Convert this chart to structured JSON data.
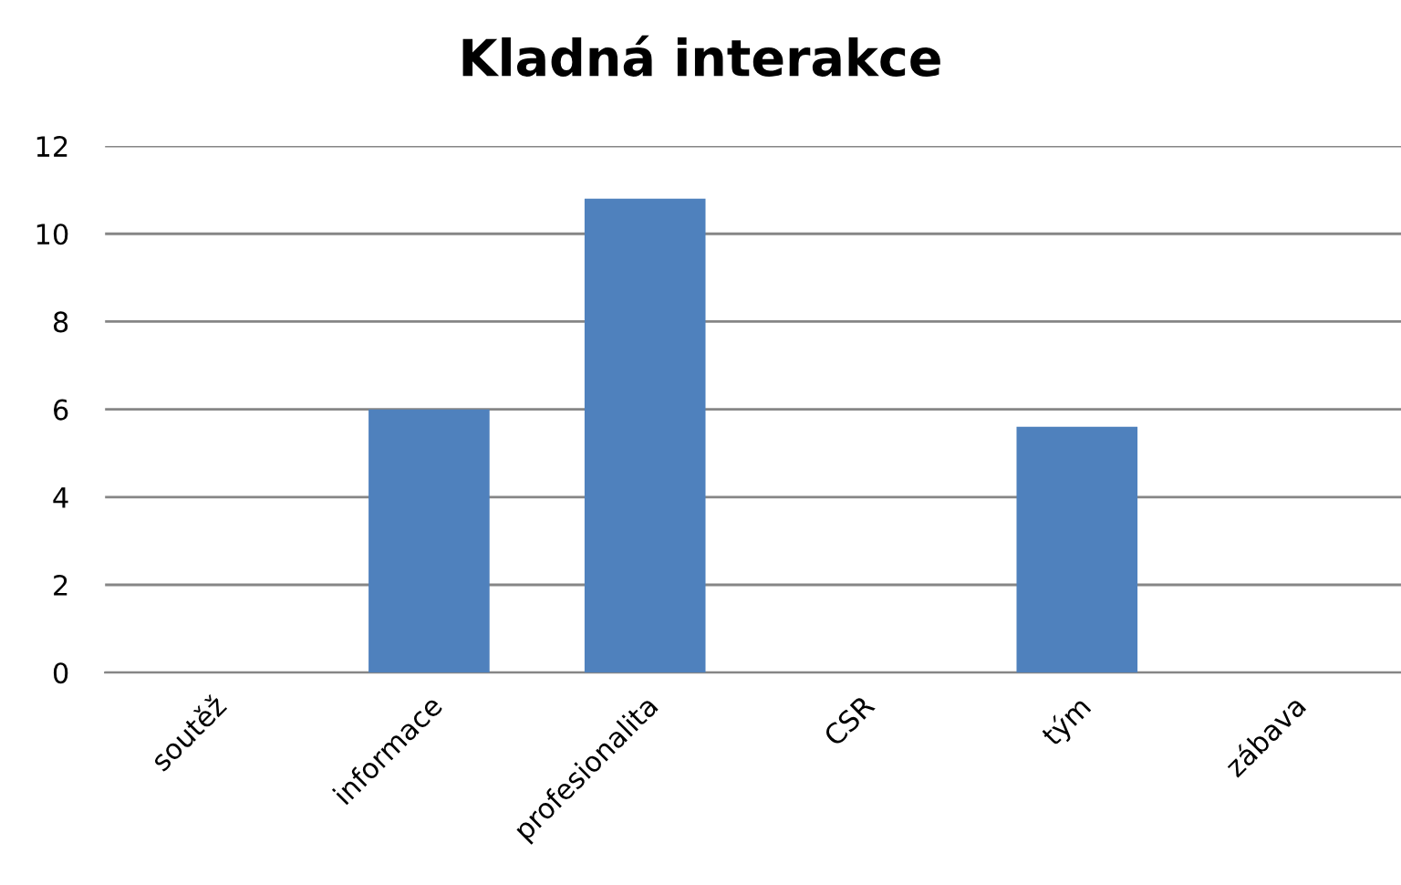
{
  "chart_data": {
    "type": "bar",
    "title": "Kladná interakce",
    "categories": [
      "soutěž",
      "informace",
      "profesionalita",
      "CSR",
      "tým",
      "zábava"
    ],
    "values": [
      0,
      6,
      10.8,
      0,
      5.6,
      0
    ],
    "color": "#4f81bd",
    "ylim": [
      0,
      12
    ],
    "yticks": [
      0,
      2,
      4,
      6,
      8,
      10,
      12
    ],
    "grid": "y",
    "legend": false
  }
}
